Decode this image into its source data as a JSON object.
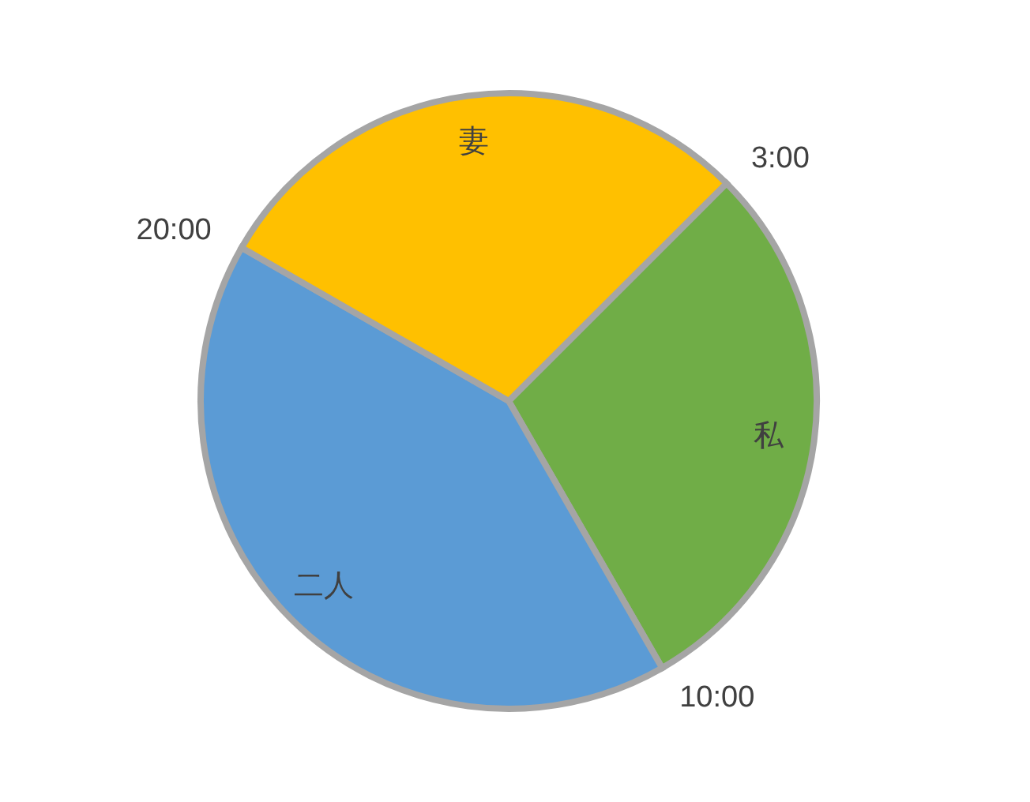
{
  "chart_data": {
    "type": "pie",
    "categories": [
      "私",
      "二人",
      "妻"
    ],
    "values": [
      29.2,
      41.6,
      29.2
    ],
    "colors": [
      "#70ad47",
      "#5b9bd5",
      "#ffc000"
    ],
    "annotations": [
      "3:00",
      "10:00",
      "20:00"
    ],
    "legend": false
  }
}
